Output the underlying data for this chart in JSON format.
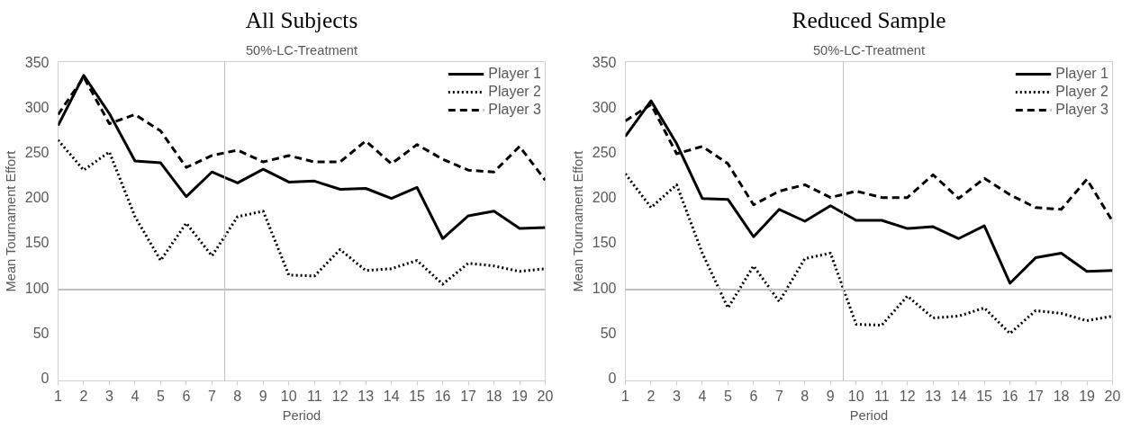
{
  "chart_data": [
    {
      "type": "line",
      "title": "All Subjects",
      "subtitle": "50%-LC-Treatment",
      "xlabel": "Period",
      "ylabel": "Mean Tournament Effort",
      "x": [
        1,
        2,
        3,
        4,
        5,
        6,
        7,
        8,
        9,
        10,
        11,
        12,
        13,
        14,
        15,
        16,
        17,
        18,
        19,
        20
      ],
      "series": [
        {
          "name": "Player 1",
          "color": "#000000",
          "line_style": "solid",
          "values": [
            280,
            335,
            293,
            241,
            239,
            202,
            229,
            217,
            232,
            218,
            219,
            210,
            211,
            200,
            212,
            156,
            181,
            186,
            167,
            168
          ]
        },
        {
          "name": "Player 2",
          "color": "#000000",
          "line_style": "dotted",
          "values": [
            264,
            231,
            251,
            180,
            132,
            173,
            137,
            180,
            186,
            116,
            115,
            144,
            121,
            123,
            132,
            106,
            129,
            126,
            120,
            123
          ]
        },
        {
          "name": "Player 3",
          "color": "#000000",
          "line_style": "dashed",
          "values": [
            292,
            333,
            282,
            292,
            274,
            234,
            247,
            253,
            240,
            247,
            240,
            240,
            263,
            238,
            259,
            243,
            231,
            229,
            257,
            220
          ]
        }
      ],
      "xlim": [
        1,
        20
      ],
      "xticks": [
        1,
        2,
        3,
        4,
        5,
        6,
        7,
        8,
        9,
        10,
        11,
        12,
        13,
        14,
        15,
        16,
        17,
        18,
        19,
        20
      ],
      "ylim": [
        0,
        350
      ],
      "yticks": [
        0,
        50,
        100,
        150,
        200,
        250,
        300,
        350
      ],
      "ref_lines": [
        {
          "axis": "y",
          "value": 100,
          "color": "#bfbfbf"
        },
        {
          "axis": "x",
          "value": 7.5,
          "color": "#bfbfbf"
        }
      ],
      "grid": false,
      "legend": "top right"
    },
    {
      "type": "line",
      "title": "Reduced Sample",
      "subtitle": "50%-LC-Treatment",
      "xlabel": "Period",
      "ylabel": "Mean Tournament Effort",
      "x": [
        1,
        2,
        3,
        4,
        5,
        6,
        7,
        8,
        9,
        10,
        11,
        12,
        13,
        14,
        15,
        16,
        17,
        18,
        19,
        20
      ],
      "series": [
        {
          "name": "Player 1",
          "color": "#000000",
          "line_style": "solid",
          "values": [
            268,
            307,
            260,
            200,
            199,
            158,
            188,
            175,
            192,
            176,
            176,
            167,
            169,
            156,
            170,
            107,
            135,
            140,
            120,
            121
          ]
        },
        {
          "name": "Player 2",
          "color": "#000000",
          "line_style": "dotted",
          "values": [
            227,
            190,
            215,
            140,
            80,
            126,
            87,
            134,
            140,
            62,
            61,
            93,
            69,
            71,
            80,
            52,
            77,
            74,
            66,
            71
          ]
        },
        {
          "name": "Player 3",
          "color": "#000000",
          "line_style": "dashed",
          "values": [
            285,
            303,
            249,
            257,
            238,
            193,
            208,
            215,
            201,
            208,
            201,
            201,
            226,
            200,
            222,
            204,
            190,
            188,
            221,
            175
          ]
        }
      ],
      "xlim": [
        1,
        20
      ],
      "xticks": [
        1,
        2,
        3,
        4,
        5,
        6,
        7,
        8,
        9,
        10,
        11,
        12,
        13,
        14,
        15,
        16,
        17,
        18,
        19,
        20
      ],
      "ylim": [
        0,
        350
      ],
      "yticks": [
        0,
        50,
        100,
        150,
        200,
        250,
        300,
        350
      ],
      "ref_lines": [
        {
          "axis": "y",
          "value": 100,
          "color": "#bfbfbf"
        },
        {
          "axis": "x",
          "value": 9.5,
          "color": "#bfbfbf"
        }
      ],
      "grid": false,
      "legend": "top right"
    }
  ]
}
